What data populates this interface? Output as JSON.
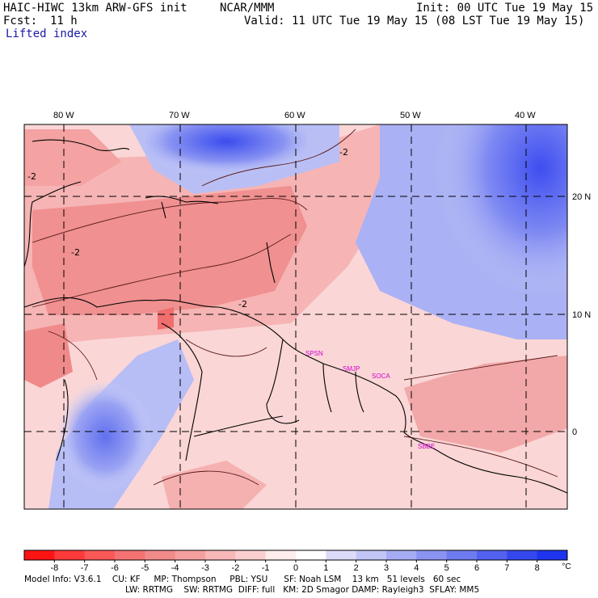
{
  "header": {
    "model": "HAIC-HIWC 13km ARW-GFS init",
    "org": "NCAR/MMM",
    "init": "Init: 00 UTC Tue 19 May 15",
    "fcst_label": "Fcst:",
    "fcst_value": "11 h",
    "valid": "Valid: 11 UTC Tue 19 May 15 (08 LST Tue 19 May 15)",
    "field": "Lifted index"
  },
  "map": {
    "lon_labels": [
      "80 W",
      "70 W",
      "60 W",
      "50 W",
      "40 W"
    ],
    "lat_labels": [
      "20 N",
      "10 N",
      "0"
    ],
    "contour_labels": [
      "-2",
      "-2",
      "-2",
      "-2"
    ],
    "stations": [
      "SPSN",
      "SMJP",
      "SOCA",
      "SBBE"
    ],
    "colors": {
      "ocean_warm": "#f6c4c4",
      "land": "#fbd8d8",
      "neg_strong": "#f08a8a",
      "pos_blue": "#4c5cf0",
      "station": "#d000d0"
    }
  },
  "colorbar": {
    "ticks": [
      "-8",
      "-7",
      "-6",
      "-5",
      "-4",
      "-3",
      "-2",
      "-1",
      "0",
      "1",
      "2",
      "3",
      "4",
      "5",
      "6",
      "7",
      "8"
    ],
    "unit": "°C",
    "colors": [
      "#ff1414",
      "#ff3a3a",
      "#fb5858",
      "#f57272",
      "#f28a8a",
      "#f5a0a0",
      "#f8b8b8",
      "#fbcfcf",
      "#ffecec",
      "#ffffff",
      "#dcdcf9",
      "#c2c6f6",
      "#a6acf3",
      "#8a93f1",
      "#6e7bef",
      "#5262ef",
      "#3448ee",
      "#1e34ee"
    ]
  },
  "footer": {
    "line1": "Model Info: V3.6.1    CU: KF     MP: Thompson     PBL: YSU      SF: Noah LSM    13 km   51 levels   60 sec",
    "line2": "LW: RRTMG    SW: RRTMG  DIFF: full   KM: 2D Smagor DAMP: Rayleigh3  SFLAY: MM5"
  }
}
